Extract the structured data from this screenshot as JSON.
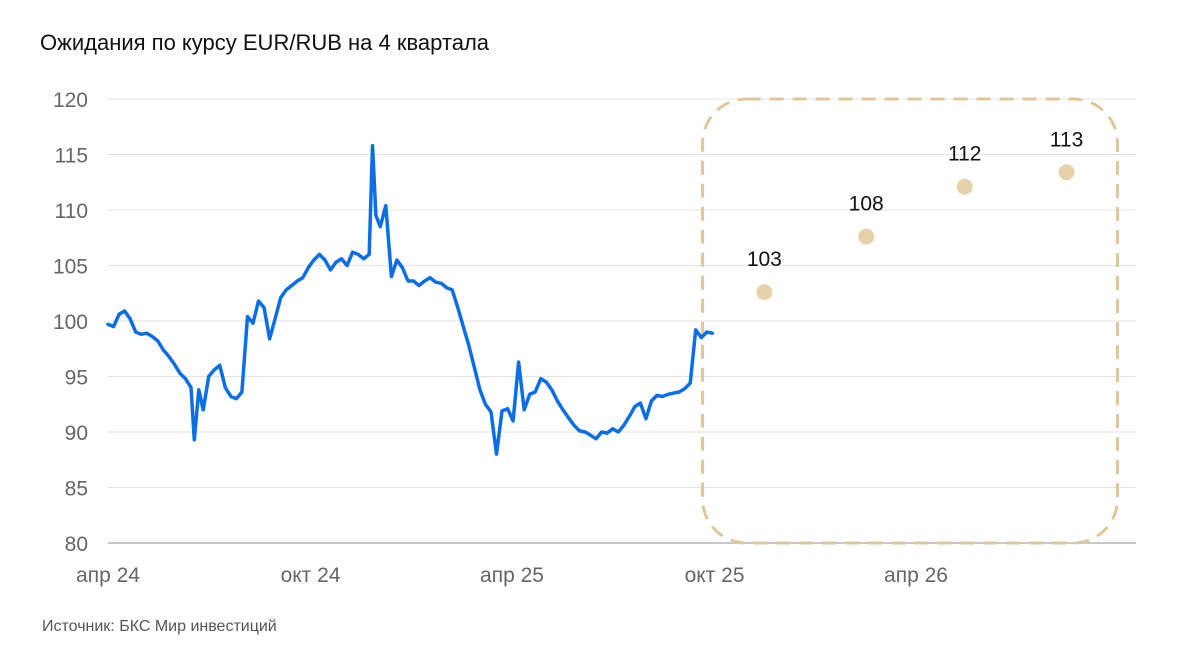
{
  "title": "Ожидания по курсу EUR/RUB на 4 квартала",
  "source": "Источник: БКС Мир инвестиций",
  "colors": {
    "history_line": "#0b6ee6",
    "forecast_point": "#e6d2a8",
    "forecast_box": "#e0c79a",
    "grid": "#e3e3e3"
  },
  "chart_data": {
    "type": "line",
    "title": "Ожидания по курсу EUR/RUB на 4 квартала",
    "xlabel": "",
    "ylabel": "",
    "ylim": [
      80,
      120
    ],
    "yticks": [
      80,
      85,
      90,
      95,
      100,
      105,
      110,
      115,
      120
    ],
    "xticks": [
      {
        "label": "апр 24",
        "date": "2024-04-01"
      },
      {
        "label": "окт 24",
        "date": "2024-10-01"
      },
      {
        "label": "апр 25",
        "date": "2025-04-01"
      },
      {
        "label": "окт 25",
        "date": "2025-10-01"
      },
      {
        "label": "апр 26",
        "date": "2026-04-01"
      }
    ],
    "grid": true,
    "legend": "none",
    "series": [
      {
        "x": [
          "2024-04-01",
          "2024-04-06",
          "2024-04-11",
          "2024-04-16",
          "2024-04-21",
          "2024-04-26",
          "2024-05-01",
          "2024-05-06",
          "2024-05-11",
          "2024-05-16",
          "2024-05-21",
          "2024-05-26",
          "2024-05-31",
          "2024-06-05",
          "2024-06-10",
          "2024-06-15",
          "2024-06-18",
          "2024-06-22",
          "2024-06-26",
          "2024-07-01",
          "2024-07-06",
          "2024-07-11",
          "2024-07-16",
          "2024-07-21",
          "2024-07-26",
          "2024-07-31",
          "2024-08-05",
          "2024-08-10",
          "2024-08-15",
          "2024-08-20",
          "2024-08-25",
          "2024-08-30",
          "2024-09-04",
          "2024-09-09",
          "2024-09-14",
          "2024-09-19",
          "2024-09-24",
          "2024-09-29",
          "2024-10-04",
          "2024-10-09",
          "2024-10-14",
          "2024-10-19",
          "2024-10-24",
          "2024-10-29",
          "2024-11-03",
          "2024-11-08",
          "2024-11-13",
          "2024-11-18",
          "2024-11-23",
          "2024-11-26",
          "2024-11-29",
          "2024-12-03",
          "2024-12-08",
          "2024-12-13",
          "2024-12-18",
          "2024-12-23",
          "2024-12-28",
          "2025-01-02",
          "2025-01-07",
          "2025-01-12",
          "2025-01-17",
          "2025-01-22",
          "2025-01-27",
          "2025-02-01",
          "2025-02-06",
          "2025-02-11",
          "2025-02-16",
          "2025-02-21",
          "2025-02-26",
          "2025-03-03",
          "2025-03-08",
          "2025-03-13",
          "2025-03-18",
          "2025-03-23",
          "2025-03-28",
          "2025-04-02",
          "2025-04-07",
          "2025-04-12",
          "2025-04-17",
          "2025-04-22",
          "2025-04-27",
          "2025-05-02",
          "2025-05-07",
          "2025-05-12",
          "2025-05-17",
          "2025-05-22",
          "2025-05-27",
          "2025-06-01",
          "2025-06-06",
          "2025-06-11",
          "2025-06-16",
          "2025-06-21",
          "2025-06-26",
          "2025-07-01",
          "2025-07-06",
          "2025-07-11",
          "2025-07-16",
          "2025-07-21",
          "2025-07-26",
          "2025-07-31",
          "2025-08-05",
          "2025-08-10",
          "2025-08-15",
          "2025-08-20",
          "2025-08-25",
          "2025-08-30",
          "2025-09-04",
          "2025-09-09",
          "2025-09-14",
          "2025-09-19",
          "2025-09-24",
          "2025-09-29"
        ],
        "values": [
          99.7,
          99.5,
          100.6,
          100.9,
          100.2,
          99.0,
          98.8,
          98.9,
          98.6,
          98.2,
          97.4,
          96.8,
          96.1,
          95.3,
          94.8,
          94.0,
          89.3,
          93.8,
          92.0,
          95.0,
          95.6,
          96.0,
          94.0,
          93.2,
          93.0,
          93.6,
          100.4,
          99.8,
          101.8,
          101.2,
          98.4,
          100.2,
          102.1,
          102.8,
          103.2,
          103.6,
          103.9,
          104.8,
          105.5,
          106.0,
          105.5,
          104.6,
          105.3,
          105.6,
          105.0,
          106.2,
          106.0,
          105.6,
          106.0,
          115.8,
          109.5,
          108.5,
          110.4,
          104.0,
          105.5,
          104.8,
          103.6,
          103.6,
          103.2,
          103.6,
          103.9,
          103.5,
          103.4,
          103.0,
          102.8,
          101.2,
          99.5,
          97.8,
          95.8,
          93.8,
          92.5,
          91.8,
          88.0,
          91.9,
          92.1,
          91.0,
          96.3,
          92.0,
          93.4,
          93.6,
          94.8,
          94.5,
          93.8,
          92.8,
          92.0,
          91.3,
          90.6,
          90.1,
          90.0,
          89.7,
          89.4,
          90.0,
          89.9,
          90.3,
          90.0,
          90.6,
          91.4,
          92.3,
          92.6,
          91.2,
          92.8,
          93.3,
          93.2,
          93.4,
          93.5,
          93.6,
          93.9,
          94.4,
          99.2,
          98.5,
          99.0,
          98.9
        ]
      },
      {
        "type": "scatter",
        "x": [
          "2025-11-15",
          "2026-02-15",
          "2026-05-15",
          "2026-08-15"
        ],
        "values": [
          102.6,
          107.6,
          112.1,
          113.4
        ],
        "labels": [
          "103",
          "108",
          "112",
          "113"
        ]
      }
    ],
    "annotations": [
      {
        "type": "dashed-rounded-box",
        "x_range": [
          "2025-10-01",
          "2026-09-30"
        ],
        "y_range": [
          80,
          120
        ]
      }
    ]
  }
}
